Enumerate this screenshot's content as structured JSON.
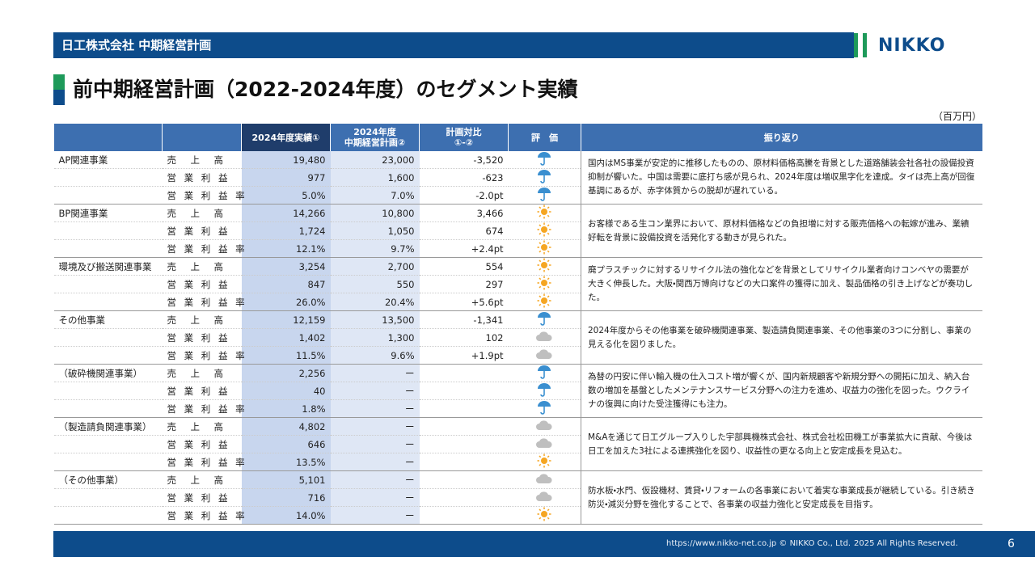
{
  "header": {
    "company": "日工株式会社 中期経営計画",
    "logo": "NIKKO"
  },
  "title": "前中期経営計画（2022-2024年度）のセグメント実績",
  "unit": "（百万円）",
  "table": {
    "columns": [
      [
        ""
      ],
      [
        ""
      ],
      [
        "2024年度実績①"
      ],
      [
        "2024年度",
        "中期経営計画②"
      ],
      [
        "計画対比",
        "①-②"
      ],
      [
        "評　価"
      ],
      [
        "振り返り"
      ]
    ],
    "groups": [
      {
        "name": "AP関連事業",
        "rows": [
          [
            "売　上　高",
            "19,480",
            "23,000",
            "-3,520"
          ],
          [
            "営 業 利 益",
            "977",
            "1,600",
            "-623"
          ],
          [
            "営 業 利 益 率",
            "5.0%",
            "7.0%",
            "-2.0pt"
          ]
        ],
        "comment": "国内はMS事業が安定的に推移したものの、原材料価格高騰を背景とした道路舗装会社各社の設備投資抑制が響いた。中国は需要に底打ち感が見られ、2024年度は増収黒字化を達成。タイは売上高が回復基調にあるが、赤字体質からの脱却が遅れている。"
      },
      {
        "name": "BP関連事業",
        "rows": [
          [
            "売　上　高",
            "14,266",
            "10,800",
            "3,466"
          ],
          [
            "営 業 利 益",
            "1,724",
            "1,050",
            "674"
          ],
          [
            "営 業 利 益 率",
            "12.1%",
            "9.7%",
            "+2.4pt"
          ]
        ],
        "comment": "お客様である生コン業界において、原材料価格などの負担増に対する販売価格への転嫁が進み、業績好転を背景に設備投資を活発化する動きが見られた。"
      },
      {
        "name": "環境及び搬送関連事業",
        "rows": [
          [
            "売　上　高",
            "3,254",
            "2,700",
            "554"
          ],
          [
            "営 業 利 益",
            "847",
            "550",
            "297"
          ],
          [
            "営 業 利 益 率",
            "26.0%",
            "20.4%",
            "+5.6pt"
          ]
        ],
        "comment": "廃プラスチックに対するリサイクル法の強化などを背景としてリサイクル業者向けコンベヤの需要が大きく伸長した。大阪・関西万博向けなどの大口案件の獲得に加え、製品価格の引き上げなどが奏功した。"
      },
      {
        "name": "その他事業",
        "rows": [
          [
            "売　上　高",
            "12,159",
            "13,500",
            "-1,341"
          ],
          [
            "営 業 利 益",
            "1,402",
            "1,300",
            "102"
          ],
          [
            "営 業 利 益 率",
            "11.5%",
            "9.6%",
            "+1.9pt"
          ]
        ],
        "comment": "2024年度からその他事業を破砕機関連事業、製造請負関連事業、その他事業の3つに分割し、事業の見える化を図りました。"
      },
      {
        "name": "（破砕機関連事業）",
        "rows": [
          [
            "売　上　高",
            "2,256",
            "ー",
            ""
          ],
          [
            "営 業 利 益",
            "40",
            "ー",
            ""
          ],
          [
            "営 業 利 益 率",
            "1.8%",
            "ー",
            ""
          ]
        ],
        "comment": "為替の円安に伴い輸入機の仕入コスト増が響くが、国内新規顧客や新規分野への開拓に加え、納入台数の増加を基盤としたメンテナンスサービス分野への注力を進め、収益力の強化を図った。ウクライナの復興に向けた受注獲得にも注力。"
      },
      {
        "name": "（製造請負関連事業）",
        "rows": [
          [
            "売　上　高",
            "4,802",
            "ー",
            ""
          ],
          [
            "営 業 利 益",
            "646",
            "ー",
            ""
          ],
          [
            "営 業 利 益 率",
            "13.5%",
            "ー",
            ""
          ]
        ],
        "comment": "M&Aを通じて日工グループ入りした宇部興機株式会社、株式会社松田機工が事業拡大に貢献、今後は日工を加えた3社による連携強化を図り、収益性の更なる向上と安定成長を見込む。"
      },
      {
        "name": "（その他事業）",
        "rows": [
          [
            "売　上　高",
            "5,101",
            "ー",
            ""
          ],
          [
            "営 業 利 益",
            "716",
            "ー",
            ""
          ],
          [
            "営 業 利 益 率",
            "14.0%",
            "ー",
            ""
          ]
        ],
        "comment": "防水板・水門、仮設機材、賃貸・リフォームの各事業において着実な事業成長が継続している。引き続き防災・減災分野を強化することで、各事業の収益力強化と安定成長を目指す。"
      }
    ]
  },
  "footer": {
    "url": "https://www.nikko-net.co.jp © NIKKO Co., Ltd.",
    "rights": "2025 All Rights Reserved.",
    "page": "6"
  }
}
